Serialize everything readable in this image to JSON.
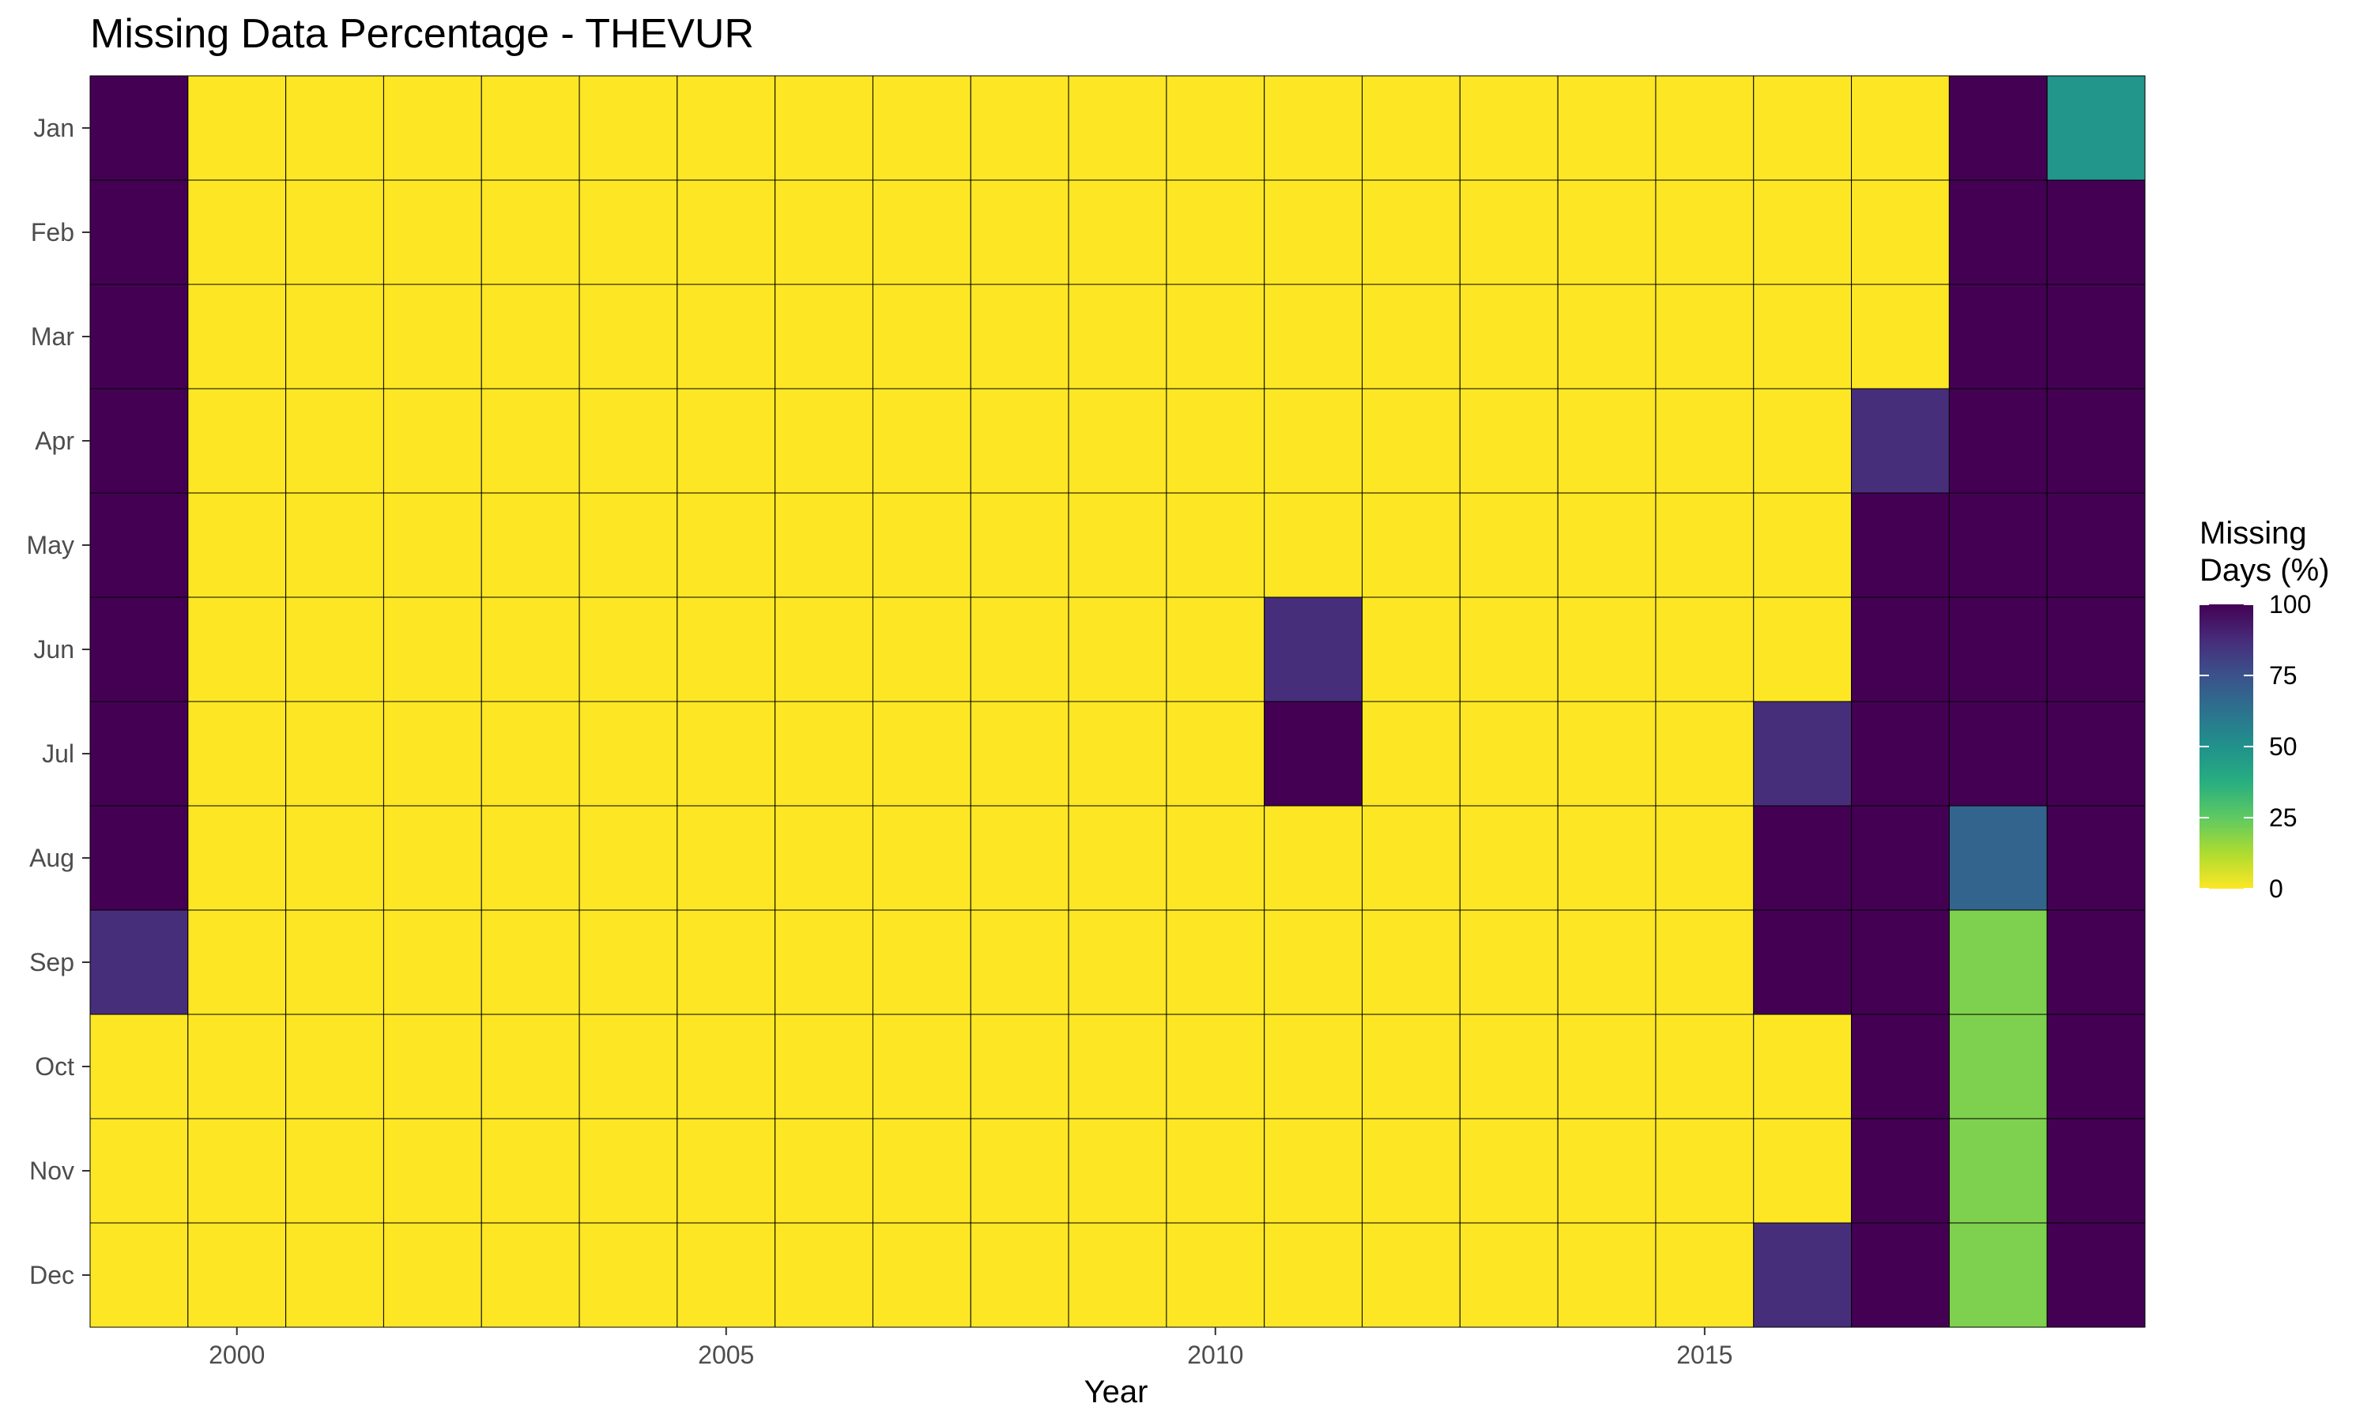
{
  "chart_data": {
    "type": "heatmap",
    "title": "Missing Data Percentage - THEVUR",
    "xlabel": "Year",
    "ylabel": "",
    "x": [
      1999,
      2000,
      2001,
      2002,
      2003,
      2004,
      2005,
      2006,
      2007,
      2008,
      2009,
      2010,
      2011,
      2012,
      2013,
      2014,
      2015,
      2016,
      2017,
      2018,
      2019
    ],
    "x_ticks": [
      2000,
      2005,
      2010,
      2015
    ],
    "y": [
      "Jan",
      "Feb",
      "Mar",
      "Apr",
      "May",
      "Jun",
      "Jul",
      "Aug",
      "Sep",
      "Oct",
      "Nov",
      "Dec"
    ],
    "values": [
      [
        100,
        0,
        0,
        0,
        0,
        0,
        0,
        0,
        0,
        0,
        0,
        0,
        0,
        0,
        0,
        0,
        0,
        0,
        0,
        100,
        48
      ],
      [
        100,
        0,
        0,
        0,
        0,
        0,
        0,
        0,
        0,
        0,
        0,
        0,
        0,
        0,
        0,
        0,
        0,
        0,
        0,
        100,
        100
      ],
      [
        100,
        0,
        0,
        0,
        0,
        0,
        0,
        0,
        0,
        0,
        0,
        0,
        0,
        0,
        0,
        0,
        0,
        0,
        0,
        100,
        100
      ],
      [
        100,
        0,
        0,
        0,
        0,
        0,
        0,
        0,
        0,
        0,
        0,
        0,
        0,
        0,
        0,
        0,
        0,
        0,
        87,
        100,
        100
      ],
      [
        100,
        0,
        0,
        0,
        0,
        0,
        0,
        0,
        0,
        0,
        0,
        0,
        0,
        0,
        0,
        0,
        0,
        0,
        100,
        100,
        100
      ],
      [
        100,
        0,
        0,
        0,
        0,
        0,
        0,
        0,
        0,
        0,
        0,
        0,
        87,
        0,
        0,
        0,
        0,
        0,
        100,
        100,
        100
      ],
      [
        100,
        0,
        0,
        0,
        0,
        0,
        0,
        0,
        0,
        0,
        0,
        0,
        100,
        0,
        0,
        0,
        0,
        87,
        100,
        100,
        100
      ],
      [
        100,
        0,
        0,
        0,
        0,
        0,
        0,
        0,
        0,
        0,
        0,
        0,
        0,
        0,
        0,
        0,
        0,
        100,
        100,
        68,
        100
      ],
      [
        87,
        0,
        0,
        0,
        0,
        0,
        0,
        0,
        0,
        0,
        0,
        0,
        0,
        0,
        0,
        0,
        0,
        100,
        100,
        20,
        100
      ],
      [
        0,
        0,
        0,
        0,
        0,
        0,
        0,
        0,
        0,
        0,
        0,
        0,
        0,
        0,
        0,
        0,
        0,
        0,
        100,
        20,
        100
      ],
      [
        0,
        0,
        0,
        0,
        0,
        0,
        0,
        0,
        0,
        0,
        0,
        0,
        0,
        0,
        0,
        0,
        0,
        0,
        100,
        20,
        100
      ],
      [
        0,
        0,
        0,
        0,
        0,
        0,
        0,
        0,
        0,
        0,
        0,
        0,
        0,
        0,
        0,
        0,
        0,
        87,
        100,
        20,
        100
      ]
    ],
    "zlim": [
      0,
      100
    ],
    "legend": {
      "title_line1": "Missing",
      "title_line2": "Days (%)",
      "breaks": [
        "100",
        "75",
        "50",
        "25",
        "0"
      ],
      "position": "right"
    },
    "colorscale": "viridis reversed",
    "grid": false
  }
}
